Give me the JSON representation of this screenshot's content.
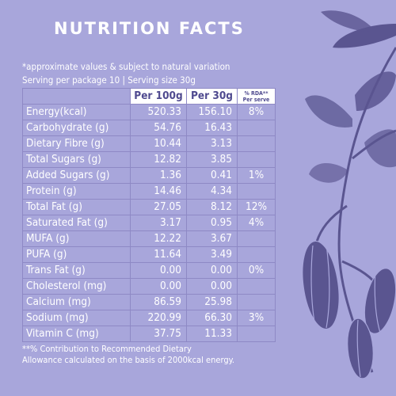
{
  "title": "NUTRITION FACTS",
  "notes": {
    "approx": "*approximate values & subject to natural variation",
    "serving": "Serving per package 10  |  Serving size 30g"
  },
  "table": {
    "headers": {
      "per100": "Per 100g",
      "per30": "Per 30g",
      "rda_line1": "% RDA**",
      "rda_line2": "Per serve"
    },
    "rows": [
      {
        "name": "Energy(kcal)",
        "per100": "520.33",
        "per30": "156.10",
        "rda": "8%"
      },
      {
        "name": "Carbohydrate (g)",
        "per100": "54.76",
        "per30": "16.43",
        "rda": ""
      },
      {
        "name": "Dietary Fibre (g)",
        "per100": "10.44",
        "per30": "3.13",
        "rda": ""
      },
      {
        "name": "Total Sugars (g)",
        "per100": "12.82",
        "per30": "3.85",
        "rda": ""
      },
      {
        "name": "Added Sugars (g)",
        "per100": "1.36",
        "per30": "0.41",
        "rda": "1%"
      },
      {
        "name": "Protein (g)",
        "per100": "14.46",
        "per30": "4.34",
        "rda": ""
      },
      {
        "name": "Total Fat (g)",
        "per100": "27.05",
        "per30": "8.12",
        "rda": "12%"
      },
      {
        "name": "Saturated Fat (g)",
        "per100": "3.17",
        "per30": "0.95",
        "rda": "4%"
      },
      {
        "name": "MUFA (g)",
        "per100": "12.22",
        "per30": "3.67",
        "rda": ""
      },
      {
        "name": "PUFA (g)",
        "per100": "11.64",
        "per30": "3.49",
        "rda": ""
      },
      {
        "name": "Trans Fat (g)",
        "per100": "0.00",
        "per30": "0.00",
        "rda": "0%"
      },
      {
        "name": "Cholesterol (mg)",
        "per100": "0.00",
        "per30": "0.00",
        "rda": ""
      },
      {
        "name": "Calcium (mg)",
        "per100": "86.59",
        "per30": "25.98",
        "rda": ""
      },
      {
        "name": "Sodium (mg)",
        "per100": "220.99",
        "per30": "66.30",
        "rda": "3%"
      },
      {
        "name": "Vitamin C (mg)",
        "per100": "37.75",
        "per30": "11.33",
        "rda": ""
      }
    ]
  },
  "footer": {
    "line1": "**% Contribution to Recommended Dietary",
    "line2": "Allowance calculated on the basis of 2000kcal energy."
  },
  "colors": {
    "background": "#a8a6db",
    "illustration": "#5a5590",
    "header_text": "#4f4a8f"
  }
}
